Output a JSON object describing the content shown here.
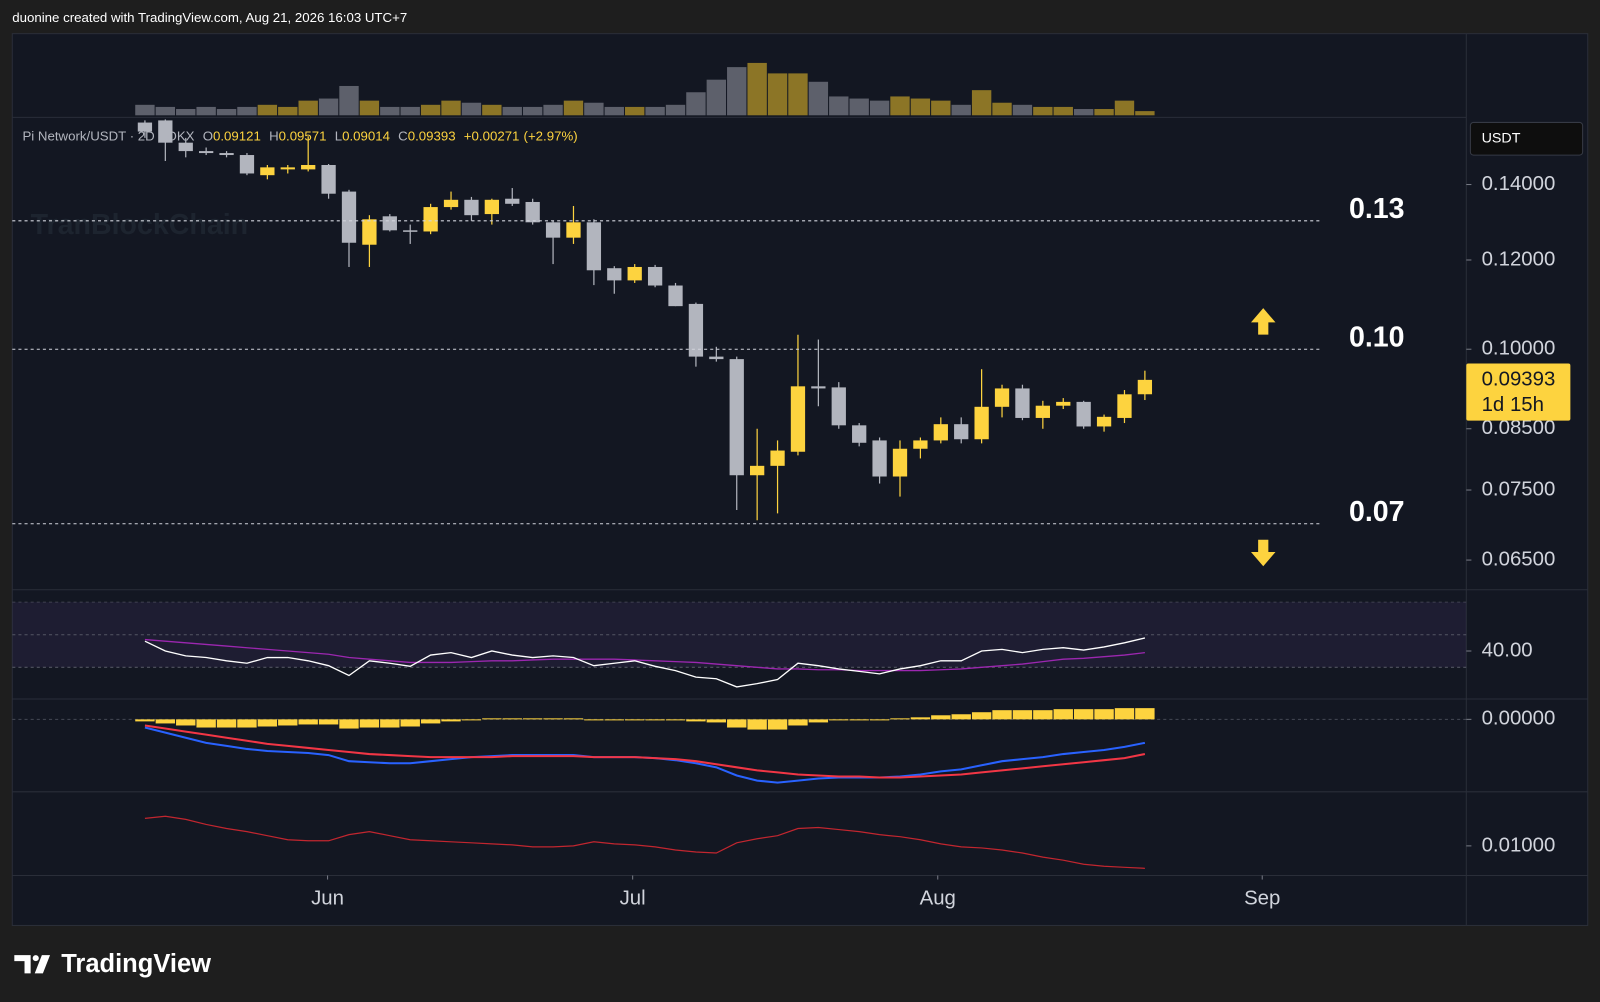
{
  "header": {
    "attribution": "duonine created with TradingView.com, Aug 21, 2026 16:03 UTC+7"
  },
  "footer": {
    "brand": "TradingView"
  },
  "chart_data": {
    "type": "candlestick",
    "symbol": "Pi Network/USDT · 2D · OKX",
    "ohlc_prefixes": [
      "O",
      "H",
      "L",
      "C"
    ],
    "change": {
      "value": 0.00271,
      "label": "+0.00271"
    },
    "change_percent": {
      "value": 2.97,
      "label": "(+2.97%)"
    },
    "currency": "USDT",
    "watermark": "TranBlockChain",
    "countdown": "1d 15h",
    "xlim": [
      -6.5,
      64.75
    ],
    "xticks": [
      {
        "value": 8.95,
        "label": "Jun"
      },
      {
        "value": 23.9,
        "label": "Jul"
      },
      {
        "value": 38.85,
        "label": "Aug"
      },
      {
        "value": 54.75,
        "label": "Sep"
      }
    ],
    "open": [
      0.1589,
      0.1596,
      0.1525,
      0.1499,
      0.1493,
      0.1487,
      0.1427,
      0.1444,
      0.1444,
      0.1457,
      0.138,
      0.1238,
      0.1312,
      0.1275,
      0.1272,
      0.1337,
      0.1357,
      0.1318,
      0.136,
      0.1351,
      0.1296,
      0.1256,
      0.1296,
      0.118,
      0.1151,
      0.1183,
      0.1139,
      0.1097,
      0.0985,
      0.098,
      0.0773,
      0.0788,
      0.0811,
      0.0927,
      0.0925,
      0.0856,
      0.083,
      0.0771,
      0.0816,
      0.083,
      0.0858,
      0.0832,
      0.0889,
      0.0923,
      0.0869,
      0.0891,
      0.0898,
      0.0854,
      0.0869,
      0.09121
    ],
    "high": [
      0.1596,
      0.16,
      0.154,
      0.151,
      0.1499,
      0.1493,
      0.1457,
      0.1457,
      0.1545,
      0.146,
      0.1385,
      0.1315,
      0.1318,
      0.129,
      0.1346,
      0.138,
      0.1365,
      0.136,
      0.139,
      0.136,
      0.13,
      0.134,
      0.1304,
      0.1185,
      0.119,
      0.1188,
      0.1145,
      0.11,
      0.1005,
      0.0985,
      0.085,
      0.083,
      0.103,
      0.102,
      0.0935,
      0.086,
      0.0835,
      0.083,
      0.0835,
      0.087,
      0.087,
      0.096,
      0.093,
      0.093,
      0.09,
      0.0905,
      0.09,
      0.0875,
      0.092,
      0.09571
    ],
    "low": [
      0.154,
      0.1469,
      0.148,
      0.1487,
      0.148,
      0.1427,
      0.1415,
      0.1432,
      0.1438,
      0.136,
      0.1183,
      0.1183,
      0.1272,
      0.124,
      0.1265,
      0.133,
      0.13,
      0.129,
      0.134,
      0.129,
      0.119,
      0.124,
      0.114,
      0.112,
      0.1145,
      0.1135,
      0.1092,
      0.0965,
      0.0975,
      0.072,
      0.0705,
      0.0715,
      0.0805,
      0.089,
      0.085,
      0.082,
      0.076,
      0.074,
      0.08,
      0.0825,
      0.0825,
      0.0825,
      0.087,
      0.0865,
      0.085,
      0.0885,
      0.085,
      0.0845,
      0.086,
      0.09014
    ],
    "close": [
      0.156,
      0.1525,
      0.1499,
      0.1493,
      0.1487,
      0.1432,
      0.145,
      0.145,
      0.1457,
      0.1374,
      0.1243,
      0.1304,
      0.1275,
      0.1272,
      0.1337,
      0.1357,
      0.1315,
      0.1357,
      0.1346,
      0.1296,
      0.1256,
      0.1296,
      0.1175,
      0.1151,
      0.1183,
      0.1139,
      0.1092,
      0.0985,
      0.098,
      0.0773,
      0.0788,
      0.0813,
      0.0927,
      0.0923,
      0.0856,
      0.0826,
      0.0771,
      0.0816,
      0.083,
      0.0858,
      0.0832,
      0.0889,
      0.0923,
      0.0869,
      0.0891,
      0.0898,
      0.0854,
      0.0871,
      0.0912,
      0.09393
    ],
    "up_color": "#fdd33f",
    "down_color": "#b2b5be",
    "ylim": [
      0.0613,
      0.1596
    ],
    "log_scale": true,
    "yticks": [
      {
        "value": 0.14,
        "label": "0.14000"
      },
      {
        "value": 0.12,
        "label": "0.12000"
      },
      {
        "value": 0.1,
        "label": "0.10000"
      },
      {
        "value": 0.085,
        "label": "0.08500"
      },
      {
        "value": 0.075,
        "label": "0.07500"
      },
      {
        "value": 0.065,
        "label": "0.06500"
      }
    ],
    "levels": [
      0.13,
      {
        "value": 0.1,
        "label": "0.10"
      },
      0.07
    ],
    "volume": {
      "values": [
        10,
        8,
        6,
        8,
        6,
        8,
        10,
        8,
        14,
        16,
        28,
        14,
        8,
        8,
        10,
        14,
        12,
        10,
        8,
        8,
        10,
        14,
        12,
        8,
        8,
        8,
        10,
        22,
        34,
        46,
        50,
        40,
        40,
        32,
        18,
        16,
        14,
        18,
        16,
        14,
        10,
        24,
        12,
        10,
        8,
        8,
        6,
        6,
        14,
        4
      ],
      "ylim": [
        0,
        75
      ],
      "up_color": "#8c7526",
      "down_color": "#5d606b"
    },
    "rsi": {
      "values": [
        46,
        40,
        37,
        36,
        34,
        32.5,
        36,
        36,
        34,
        31,
        25,
        34,
        32.5,
        30.6,
        37.5,
        39,
        36,
        40,
        37.5,
        36,
        37,
        36,
        31,
        32.5,
        34,
        30.6,
        28,
        24,
        23,
        18,
        20,
        22.5,
        32.5,
        31,
        29,
        27.5,
        26,
        29,
        31,
        34,
        34,
        40,
        41,
        39,
        41,
        42,
        40.6,
        42.5,
        45,
        48
      ],
      "ma": [
        47,
        46,
        45,
        44,
        43,
        42,
        41,
        40,
        39,
        38,
        36,
        35,
        34,
        33,
        33,
        33,
        33.5,
        34,
        34,
        34.5,
        35,
        35,
        35,
        35,
        34.5,
        34,
        33.5,
        33,
        32,
        31,
        30,
        29,
        29,
        28.5,
        28.5,
        28,
        28,
        28,
        28,
        28.5,
        29,
        30,
        31,
        32,
        33.5,
        35,
        35.5,
        36.5,
        37.5,
        39
      ],
      "color": "#ffffff",
      "ma_color": "#9c27b0",
      "ylim": [
        10.6,
        76.3
      ],
      "band": [
        30,
        70
      ],
      "yticks": [
        {
          "value": 40,
          "label": "40.00"
        }
      ]
    },
    "macd": {
      "macd": [
        -0.0016,
        -0.0026,
        -0.0036,
        -0.0046,
        -0.0052,
        -0.0058,
        -0.0062,
        -0.0064,
        -0.0066,
        -0.007,
        -0.0082,
        -0.0084,
        -0.0086,
        -0.0086,
        -0.0082,
        -0.0078,
        -0.0074,
        -0.0072,
        -0.007,
        -0.007,
        -0.007,
        -0.007,
        -0.0074,
        -0.0074,
        -0.0074,
        -0.0076,
        -0.008,
        -0.0086,
        -0.0094,
        -0.011,
        -0.012,
        -0.0124,
        -0.012,
        -0.0116,
        -0.0114,
        -0.0114,
        -0.0114,
        -0.0112,
        -0.0108,
        -0.0102,
        -0.0098,
        -0.009,
        -0.0082,
        -0.0078,
        -0.0074,
        -0.0068,
        -0.0064,
        -0.006,
        -0.0054,
        -0.0046
      ],
      "signal": [
        -0.0012,
        -0.0018,
        -0.0024,
        -0.003,
        -0.0036,
        -0.0042,
        -0.0048,
        -0.0052,
        -0.0056,
        -0.006,
        -0.0064,
        -0.0068,
        -0.007,
        -0.0072,
        -0.0074,
        -0.0074,
        -0.0074,
        -0.0074,
        -0.0072,
        -0.0072,
        -0.0072,
        -0.0072,
        -0.0074,
        -0.0074,
        -0.0074,
        -0.0076,
        -0.0078,
        -0.0082,
        -0.0088,
        -0.0094,
        -0.01,
        -0.0104,
        -0.0108,
        -0.011,
        -0.0112,
        -0.0112,
        -0.0114,
        -0.0114,
        -0.0112,
        -0.011,
        -0.0108,
        -0.0104,
        -0.01,
        -0.0096,
        -0.0092,
        -0.0088,
        -0.0084,
        -0.008,
        -0.0076,
        -0.0068
      ],
      "histogram": [
        -0.0004,
        -0.0008,
        -0.0012,
        -0.0016,
        -0.0016,
        -0.0016,
        -0.0014,
        -0.0012,
        -0.001,
        -0.001,
        -0.0018,
        -0.0016,
        -0.0016,
        -0.0014,
        -0.0008,
        -0.0004,
        0,
        0.0002,
        0.0002,
        0.0002,
        0.0002,
        0.0002,
        0,
        0,
        0,
        0,
        -0.0002,
        -0.0004,
        -0.0006,
        -0.0016,
        -0.002,
        -0.002,
        -0.0012,
        -0.0006,
        -0.0002,
        -0.0002,
        0,
        0.0002,
        0.0004,
        0.0008,
        0.001,
        0.0014,
        0.0018,
        0.0018,
        0.0018,
        0.002,
        0.002,
        0.002,
        0.0022,
        0.0022
      ],
      "macd_color": "#2962ff",
      "signal_color": "#f23645",
      "histogram_color": "#fdd33f",
      "ylim": [
        -0.014,
        0.0038
      ],
      "yticks": [
        {
          "value": 0,
          "label": "0.00000"
        }
      ]
    },
    "atr": {
      "values": [
        0.0127,
        0.0129,
        0.0126,
        0.0121,
        0.0117,
        0.0114,
        0.011,
        0.0106,
        0.0105,
        0.0105,
        0.0111,
        0.0114,
        0.011,
        0.0106,
        0.0105,
        0.0104,
        0.0103,
        0.0102,
        0.0101,
        0.0099,
        0.0099,
        0.01,
        0.0104,
        0.0102,
        0.0101,
        0.0099,
        0.0096,
        0.0094,
        0.0093,
        0.0103,
        0.0107,
        0.011,
        0.0117,
        0.0118,
        0.0116,
        0.0114,
        0.0111,
        0.0109,
        0.0106,
        0.0102,
        0.0099,
        0.0098,
        0.0096,
        0.0093,
        0.0089,
        0.0086,
        0.0082,
        0.008,
        0.0079,
        0.0078
      ],
      "color": "#c2262f",
      "ylim": [
        0.0072,
        0.0152
      ],
      "yticks": [
        {
          "value": 0.01,
          "label": "0.01000"
        }
      ]
    }
  }
}
